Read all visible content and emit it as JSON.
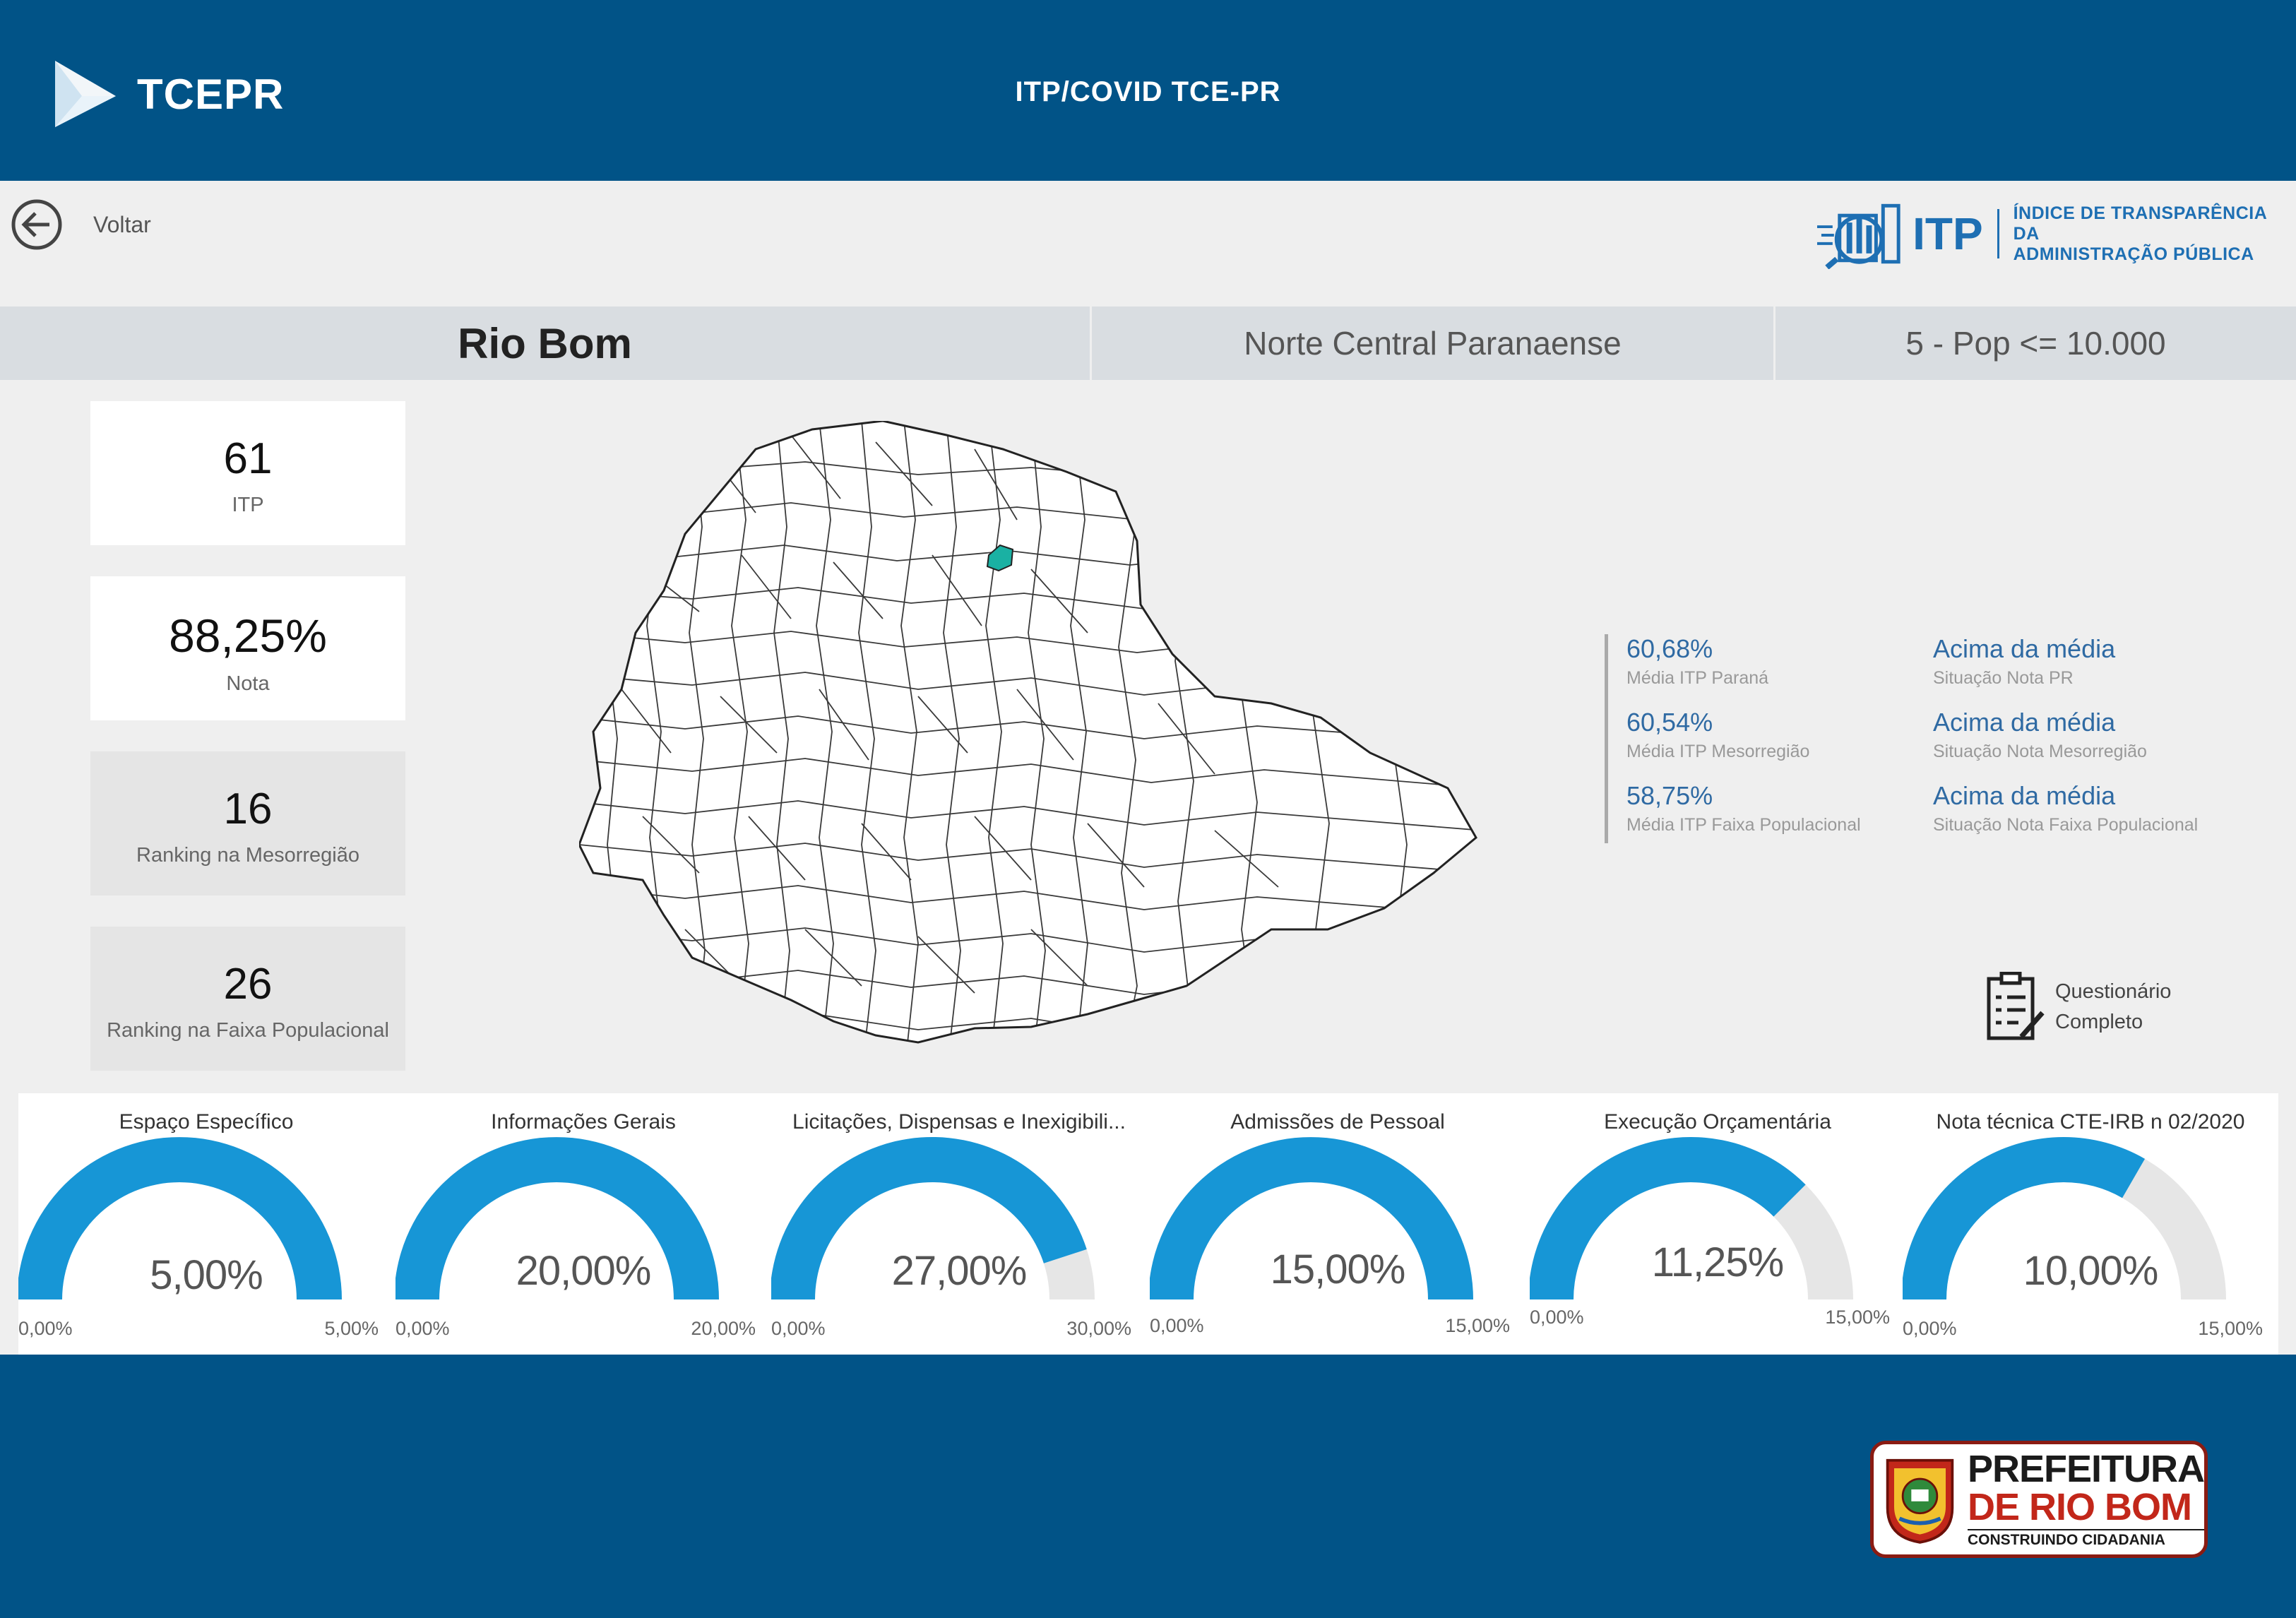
{
  "header": {
    "brand": "TCEPR",
    "title": "ITP/COVID TCE-PR"
  },
  "nav": {
    "back_label": "Voltar"
  },
  "itp_logo": {
    "acronym": "ITP",
    "line1": "ÍNDICE DE TRANSPARÊNCIA DA",
    "line2": "ADMINISTRAÇÃO PÚBLICA"
  },
  "municipality": {
    "name": "Rio Bom",
    "mesoregion": "Norte Central Paranaense",
    "population_band": "5 - Pop <= 10.000"
  },
  "kpis": [
    {
      "value": "61",
      "label": "ITP"
    },
    {
      "value": "88,25%",
      "label": "Nota"
    },
    {
      "value": "16",
      "label": "Ranking na Mesorregião"
    },
    {
      "value": "26",
      "label": "Ranking na Faixa Populacional"
    }
  ],
  "averages": [
    {
      "value": "60,68%",
      "label": "Média ITP Paraná",
      "status": "Acima da média",
      "status_label": "Situação Nota PR"
    },
    {
      "value": "60,54%",
      "label": "Média ITP Mesorregião",
      "status": "Acima da média",
      "status_label": "Situação Nota Mesorregião"
    },
    {
      "value": "58,75%",
      "label": "Média ITP Faixa Populacional",
      "status": "Acima da média",
      "status_label": "Situação Nota Faixa Populacional"
    }
  ],
  "questionnaire": {
    "line1": "Questionário",
    "line2": "Completo"
  },
  "gauges": [
    {
      "title": "Espaço Específico",
      "value_text": "5,00%",
      "min": "0,00%",
      "max": "5,00%",
      "fraction": 1.0
    },
    {
      "title": "Informações Gerais",
      "value_text": "20,00%",
      "min": "0,00%",
      "max": "20,00%",
      "fraction": 1.0
    },
    {
      "title": "Licitações, Dispensas e Inexigibili...",
      "value_text": "27,00%",
      "min": "0,00%",
      "max": "30,00%",
      "fraction": 0.9
    },
    {
      "title": "Admissões de Pessoal",
      "value_text": "15,00%",
      "min": "0,00%",
      "max": "15,00%",
      "fraction": 1.0
    },
    {
      "title": "Execução Orçamentária",
      "value_text": "11,25%",
      "min": "0,00%",
      "max": "15,00%",
      "fraction": 0.75
    },
    {
      "title": "Nota técnica CTE-IRB n 02/2020",
      "value_text": "10,00%",
      "min": "0,00%",
      "max": "15,00%",
      "fraction": 0.6667
    }
  ],
  "colors": {
    "brand_blue": "#015387",
    "gauge_fill": "#1796d6",
    "gauge_track": "#e6e6e6",
    "highlight_municipality": "#1ab1a3"
  },
  "footer_badge": {
    "line1": "PREFEITURA",
    "line2": "DE RIO BOM",
    "line3": "CONSTRUINDO CIDADANIA"
  }
}
